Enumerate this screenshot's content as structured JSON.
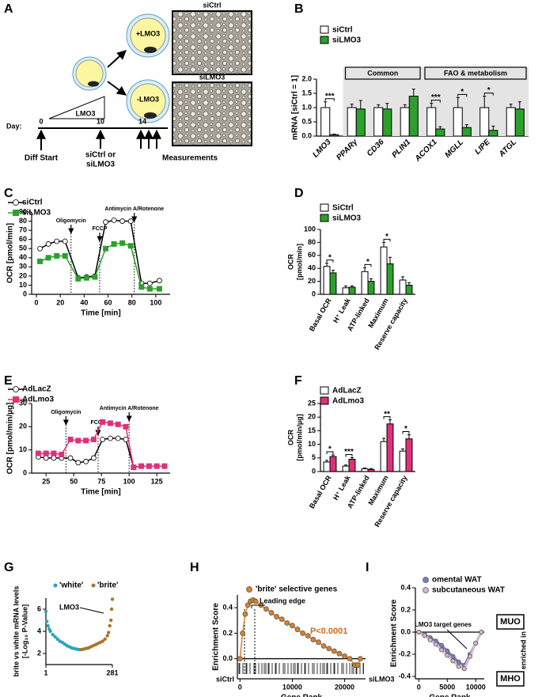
{
  "panel_labels": [
    "A",
    "B",
    "C",
    "D",
    "E",
    "F",
    "G",
    "H",
    "I"
  ],
  "diagram": {
    "cell_plus": "+LMO3",
    "cell_minus": "-LMO3",
    "ramp_label": "LMO3",
    "day_label": "Day:",
    "days": [
      0,
      10,
      14
    ],
    "events": [
      "Diff Start",
      "siCtrl or",
      "siLMO3",
      "Measurements"
    ],
    "image_labels": [
      "siCtrl",
      "siLMO3"
    ]
  },
  "chart_data": [
    {
      "type": "bar",
      "y_label": "mRNA [siCtrl = 1]",
      "categories": [
        "LMO3",
        "PPARγ",
        "CD36",
        "PLIN1",
        "ACOX1",
        "MGLL",
        "LIPE",
        "ATGL"
      ],
      "series": [
        {
          "name": "siCtrl",
          "color": "#ffffff",
          "values": [
            1.0,
            1.0,
            1.0,
            1.0,
            1.0,
            1.0,
            1.0,
            1.0
          ],
          "errors": [
            0.2,
            0.12,
            0.1,
            0.1,
            0.15,
            0.35,
            0.4,
            0.12
          ]
        },
        {
          "name": "siLMO3",
          "color": "#2ca02c",
          "values": [
            0.05,
            0.95,
            0.95,
            1.4,
            0.25,
            0.3,
            0.2,
            0.95
          ],
          "errors": [
            0.02,
            0.3,
            0.2,
            0.25,
            0.08,
            0.1,
            0.15,
            0.25
          ]
        }
      ],
      "significance": [
        "***",
        null,
        null,
        null,
        "***",
        "*",
        "*",
        null
      ],
      "groups": [
        "Common",
        "FAO & metabolism"
      ],
      "ylim": [
        0,
        2
      ],
      "yticks": [
        {
          "value": 0,
          "label": "0.0"
        },
        0.5,
        {
          "value": 1,
          "label": "1.0"
        },
        1.5,
        {
          "value": 2,
          "label": "2.0"
        }
      ]
    },
    {
      "type": "line",
      "y_label": "OCR [pmol/min]",
      "x_label": "Time [min]",
      "x": [
        3,
        10,
        17,
        24,
        35,
        42,
        49,
        58,
        65,
        72,
        79,
        88,
        95,
        103
      ],
      "series": [
        {
          "name": "siCtrl",
          "color": "#000000",
          "marker": "circle",
          "marker_fill": "#ffffff",
          "values": [
            50,
            55,
            58,
            58,
            18,
            19,
            20,
            79,
            81,
            80,
            80,
            12,
            12,
            15
          ]
        },
        {
          "name": "siLMO3",
          "color": "#2ca02c",
          "marker": "square",
          "marker_fill": "#2ca02c",
          "values": [
            36,
            40,
            42,
            42,
            17,
            18,
            19,
            50,
            55,
            56,
            53,
            8,
            6,
            6
          ]
        }
      ],
      "injections": [
        {
          "label": "Oligomycin",
          "x": 29
        },
        {
          "label": "FCCP",
          "x": 53
        },
        {
          "label": "Antimycin A/Rotenone",
          "x": 82
        }
      ],
      "xlim": [
        -4,
        112
      ],
      "xticks": [
        0,
        20,
        40,
        60,
        80,
        100
      ],
      "ylim": [
        0,
        90
      ],
      "yticks": [
        0,
        10,
        20,
        30,
        40,
        50,
        60,
        70,
        80,
        90
      ]
    },
    {
      "type": "bar",
      "y_label": [
        "OCR",
        "[pmol/min]"
      ],
      "categories": [
        "Basal OCR",
        "H⁺ Leak",
        "ATP-linked",
        "Maximum",
        "Reserve capacity"
      ],
      "series": [
        {
          "name": "SiCtrl",
          "color": "#ffffff",
          "values": [
            43,
            10,
            35,
            73,
            22
          ],
          "errors": [
            5,
            3,
            6,
            7,
            5
          ]
        },
        {
          "name": "siLMO3",
          "color": "#2ca02c",
          "values": [
            33,
            11,
            20,
            47,
            14
          ],
          "errors": [
            4,
            2,
            4,
            10,
            4
          ]
        }
      ],
      "significance": [
        "*",
        null,
        "*",
        "*",
        null
      ],
      "ylim": [
        0,
        100
      ],
      "yticks": [
        0,
        20,
        40,
        60,
        80,
        100
      ]
    },
    {
      "type": "line",
      "y_label": "OCR [pmol/min/µg]",
      "x_label": "Time [min]",
      "x": [
        18,
        25,
        32,
        39,
        47,
        54,
        61,
        68,
        76,
        83,
        90,
        97,
        104,
        111,
        118,
        125,
        132
      ],
      "series": [
        {
          "name": "AdLacZ",
          "color": "#000000",
          "marker": "circle",
          "marker_fill": "#ffffff",
          "values": [
            7,
            6.5,
            6.5,
            6.5,
            6.5,
            4.5,
            5,
            6.5,
            14.5,
            15,
            15,
            14.5,
            2.5,
            3,
            3,
            3,
            3
          ]
        },
        {
          "name": "AdLmo3",
          "color": "#e0307a",
          "marker": "square",
          "marker_fill": "#e0307a",
          "values": [
            8.5,
            8.5,
            8.5,
            8,
            14.5,
            14,
            14,
            14.5,
            22,
            21.5,
            21,
            20,
            2.5,
            3,
            3,
            3,
            3
          ]
        }
      ],
      "injections": [
        {
          "label": "Oligomycin",
          "x": 43
        },
        {
          "label": "FCCP",
          "x": 72
        },
        {
          "label": "Antimycin A/Rotenone",
          "x": 100
        }
      ],
      "xlim": [
        12,
        137
      ],
      "xticks": [
        25,
        50,
        75,
        100,
        125
      ],
      "ylim": [
        0,
        30
      ],
      "yticks": [
        0,
        10,
        20,
        30
      ]
    },
    {
      "type": "bar",
      "y_label": [
        "OCR",
        "[pmol/min/µg]"
      ],
      "categories": [
        "Basal OCR",
        "H⁺ Leak",
        "ATP-linked",
        "Maximum",
        "Reserve capacity"
      ],
      "series": [
        {
          "name": "AdLacZ",
          "color": "#ffffff",
          "values": [
            3.5,
            2,
            1,
            11,
            7.5
          ],
          "errors": [
            0.6,
            0.4,
            0.3,
            1.2,
            0.8
          ]
        },
        {
          "name": "AdLmo3",
          "color": "#e0307a",
          "values": [
            5.5,
            4.5,
            0.8,
            17.5,
            12
          ],
          "errors": [
            0.6,
            0.6,
            0.3,
            1.5,
            1.5
          ]
        }
      ],
      "significance": [
        "*",
        "***",
        null,
        "**",
        "*"
      ],
      "ylim": [
        0,
        25
      ],
      "yticks": [
        0,
        5,
        10,
        15,
        20,
        25
      ]
    },
    {
      "type": "scatter",
      "y_label": [
        "brite vs white mRNA levels",
        "[-Log₁₀ P-Value]"
      ],
      "series": [
        {
          "name": "'white'",
          "color": "#2ba3b8",
          "x": [
            1,
            5,
            10,
            15,
            20,
            30,
            40,
            50,
            60,
            70,
            80,
            90,
            100,
            110,
            120,
            130,
            140
          ],
          "values": [
            5.8,
            4.9,
            4.5,
            4.2,
            4.0,
            3.7,
            3.5,
            3.3,
            3.1,
            3.0,
            2.85,
            2.7,
            2.6,
            2.5,
            2.45,
            2.4,
            2.35
          ]
        },
        {
          "name": "'brite'",
          "color": "#a8752a",
          "x": [
            150,
            160,
            170,
            180,
            190,
            200,
            210,
            220,
            230,
            240,
            250,
            260,
            265,
            270,
            275,
            278,
            281
          ],
          "values": [
            2.35,
            2.4,
            2.45,
            2.5,
            2.6,
            2.7,
            2.8,
            2.9,
            3.0,
            3.1,
            3.3,
            3.6,
            3.9,
            4.5,
            5.0,
            6.0,
            6.9
          ]
        }
      ],
      "annotations": [
        "LMO3"
      ],
      "xlim": [
        1,
        281
      ],
      "xticks": [
        1,
        281
      ],
      "ylim": [
        2,
        7
      ],
      "yticks": [
        2,
        4,
        6
      ]
    },
    {
      "type": "line",
      "y_label": "Enrichment Score",
      "x_label": "Gene Rank",
      "x_end_labels": [
        "siCtrl",
        "siLMO3"
      ],
      "x": [
        0,
        500,
        1000,
        1500,
        2000,
        2500,
        3000,
        4000,
        5000,
        6000,
        7000,
        8000,
        9000,
        10000,
        11000,
        12000,
        13000,
        14000,
        15000,
        16000,
        17000,
        18000,
        19000,
        20000,
        21000,
        22000,
        22500,
        23000
      ],
      "series": [
        {
          "name": "'brite' selective genes",
          "color": "#d9822b",
          "marker": "circle",
          "marker_fill": "#d9822b",
          "values": [
            0,
            0.2,
            0.35,
            0.42,
            0.45,
            0.46,
            0.45,
            0.42,
            0.39,
            0.36,
            0.33,
            0.31,
            0.28,
            0.26,
            0.23,
            0.2,
            0.18,
            0.15,
            0.13,
            0.1,
            0.08,
            0.06,
            0.04,
            0.02,
            0,
            -0.05,
            -0.05,
            0
          ]
        }
      ],
      "annotations": [
        "Leading edge",
        "P<0.0001"
      ],
      "annotation_color": "#d2691e",
      "xlim": [
        -500,
        24000
      ],
      "xticks": [
        0,
        10000,
        20000
      ],
      "ylim": [
        -0.12,
        0.5
      ],
      "yticks": [
        {
          "value": 0,
          "label": "0.0"
        },
        0.2,
        0.4
      ]
    },
    {
      "type": "line",
      "y_label": "Enrichment Score",
      "x_label": "Gene Rank",
      "x": [
        0,
        1000,
        2000,
        3000,
        4000,
        5000,
        6000,
        7000,
        8000,
        9000,
        10000,
        11000
      ],
      "series": [
        {
          "name": "omental WAT",
          "color": "#7b7fc4",
          "marker": "circle",
          "marker_fill": "#7b7fc4",
          "values": [
            0,
            -0.02,
            -0.05,
            -0.08,
            -0.12,
            -0.17,
            -0.22,
            -0.27,
            -0.3,
            -0.2,
            -0.1,
            0
          ]
        },
        {
          "name": "subcutaneous WAT",
          "color": "#d9b9c9",
          "marker": "circle",
          "marker_fill": "#d9b9c9",
          "values": [
            0,
            -0.03,
            -0.07,
            -0.11,
            -0.16,
            -0.21,
            -0.26,
            -0.31,
            -0.33,
            -0.22,
            -0.1,
            0
          ]
        }
      ],
      "annotations": [
        "LMO3 target genes",
        "MUO",
        "MHO",
        "enriched in"
      ],
      "xlim": [
        -600,
        11500
      ],
      "xticks": [
        0,
        5000,
        10000
      ],
      "ylim": [
        -0.4,
        0.4
      ],
      "yticks": [
        -0.4,
        -0.2,
        {
          "value": 0,
          "label": "0.0"
        },
        0.2,
        0.4
      ]
    }
  ]
}
